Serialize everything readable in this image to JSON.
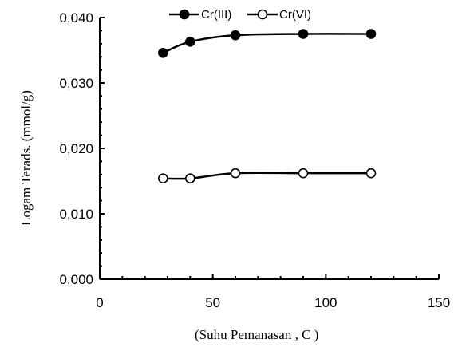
{
  "chart_data": {
    "type": "line",
    "xlabel": "(Suhu Pemanasan , C  )",
    "ylabel": "Logam Terads. (mmol/g)",
    "xlim": [
      0,
      150
    ],
    "ylim": [
      0,
      0.04
    ],
    "x_ticks": [
      "0",
      "50",
      "100",
      "150"
    ],
    "y_ticks": [
      "0,000",
      "0,010",
      "0,020",
      "0,030",
      "0,040"
    ],
    "grid": false,
    "legend_position": "top",
    "series": [
      {
        "name": "Cr(III)",
        "marker": "filled-circle",
        "color": "#000000",
        "x": [
          28,
          40,
          60,
          90,
          120
        ],
        "y": [
          0.0346,
          0.0363,
          0.0373,
          0.0375,
          0.0375
        ]
      },
      {
        "name": "Cr(VI)",
        "marker": "open-circle",
        "color": "#000000",
        "x": [
          28,
          40,
          60,
          90,
          120
        ],
        "y": [
          0.0154,
          0.0154,
          0.0162,
          0.0162,
          0.0162
        ]
      }
    ]
  }
}
